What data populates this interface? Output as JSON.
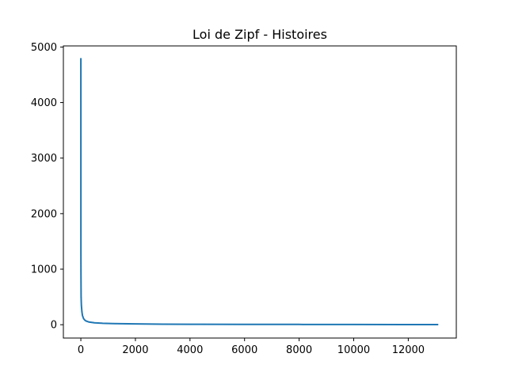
{
  "chart_data": {
    "type": "line",
    "title": "Loi de Zipf - Histoires",
    "xlabel": "",
    "ylabel": "",
    "xlim": [
      -640,
      13760
    ],
    "ylim": [
      -240,
      5020
    ],
    "x_ticks": [
      0,
      2000,
      4000,
      6000,
      8000,
      10000,
      12000
    ],
    "y_ticks": [
      0,
      1000,
      2000,
      3000,
      4000,
      5000
    ],
    "grid": false,
    "legend": "none",
    "line_color": "#1f77b4",
    "series": [
      {
        "x": [
          1,
          2,
          3,
          5,
          10,
          20,
          40,
          60,
          100,
          150,
          200,
          300,
          500,
          800,
          1200,
          2000,
          3000,
          4000,
          6000,
          8000,
          10000,
          12000,
          13100
        ],
        "y": [
          4800,
          3000,
          1250,
          900,
          500,
          350,
          230,
          165,
          110,
          80,
          65,
          48,
          35,
          26,
          20,
          14,
          10,
          8,
          6,
          5,
          4,
          3,
          3
        ]
      }
    ]
  }
}
